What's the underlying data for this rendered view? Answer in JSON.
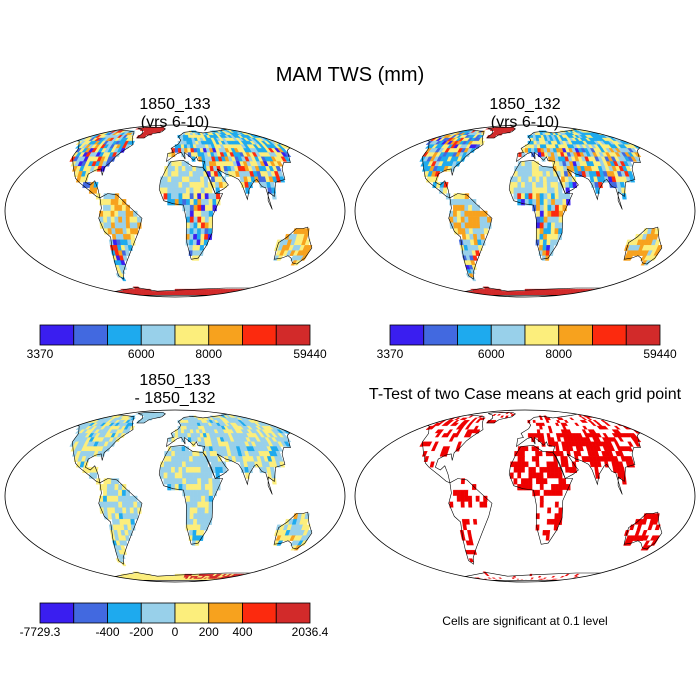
{
  "figure": {
    "title": "MAM TWS (mm)"
  },
  "panels": [
    {
      "id": "p1",
      "title_line1": "1850_133",
      "title_line2": "(yrs 6-10)",
      "palette": "abs"
    },
    {
      "id": "p2",
      "title_line1": "1850_132",
      "title_line2": "(yrs 6-10)",
      "palette": "abs"
    },
    {
      "id": "p3",
      "title_line1": "1850_133",
      "title_line2": "- 1850_132",
      "palette": "diff"
    },
    {
      "id": "p4",
      "title_line1": "T-Test of two Case means at each grid point",
      "title_line2": "",
      "palette": "ttest"
    }
  ],
  "colorbars": {
    "abs": {
      "colors": [
        "#3a1ef0",
        "#4269e0",
        "#1eaaee",
        "#98d0ea",
        "#fcee7c",
        "#f7a21e",
        "#fc2a0e",
        "#d22a2a"
      ],
      "labels": [
        "3370",
        "6000",
        "8000",
        "59440"
      ],
      "label_boundaries": [
        0,
        3,
        5,
        8
      ]
    },
    "diff": {
      "colors": [
        "#3a1ef0",
        "#4269e0",
        "#1eaaee",
        "#98d0ea",
        "#fcee7c",
        "#f7a21e",
        "#fc2a0e",
        "#d22a2a"
      ],
      "labels": [
        "-7729.3",
        "-400",
        "-200",
        "0",
        "200",
        "400",
        "2036.4"
      ],
      "label_boundaries": [
        0,
        2,
        3,
        4,
        5,
        6,
        8
      ]
    }
  },
  "note": "Cells are significant at 0.1 level",
  "colors": {
    "land_outline": "#000000",
    "ttest_fill": "#ee0000",
    "antarctica_abs": "#d22a2a"
  }
}
